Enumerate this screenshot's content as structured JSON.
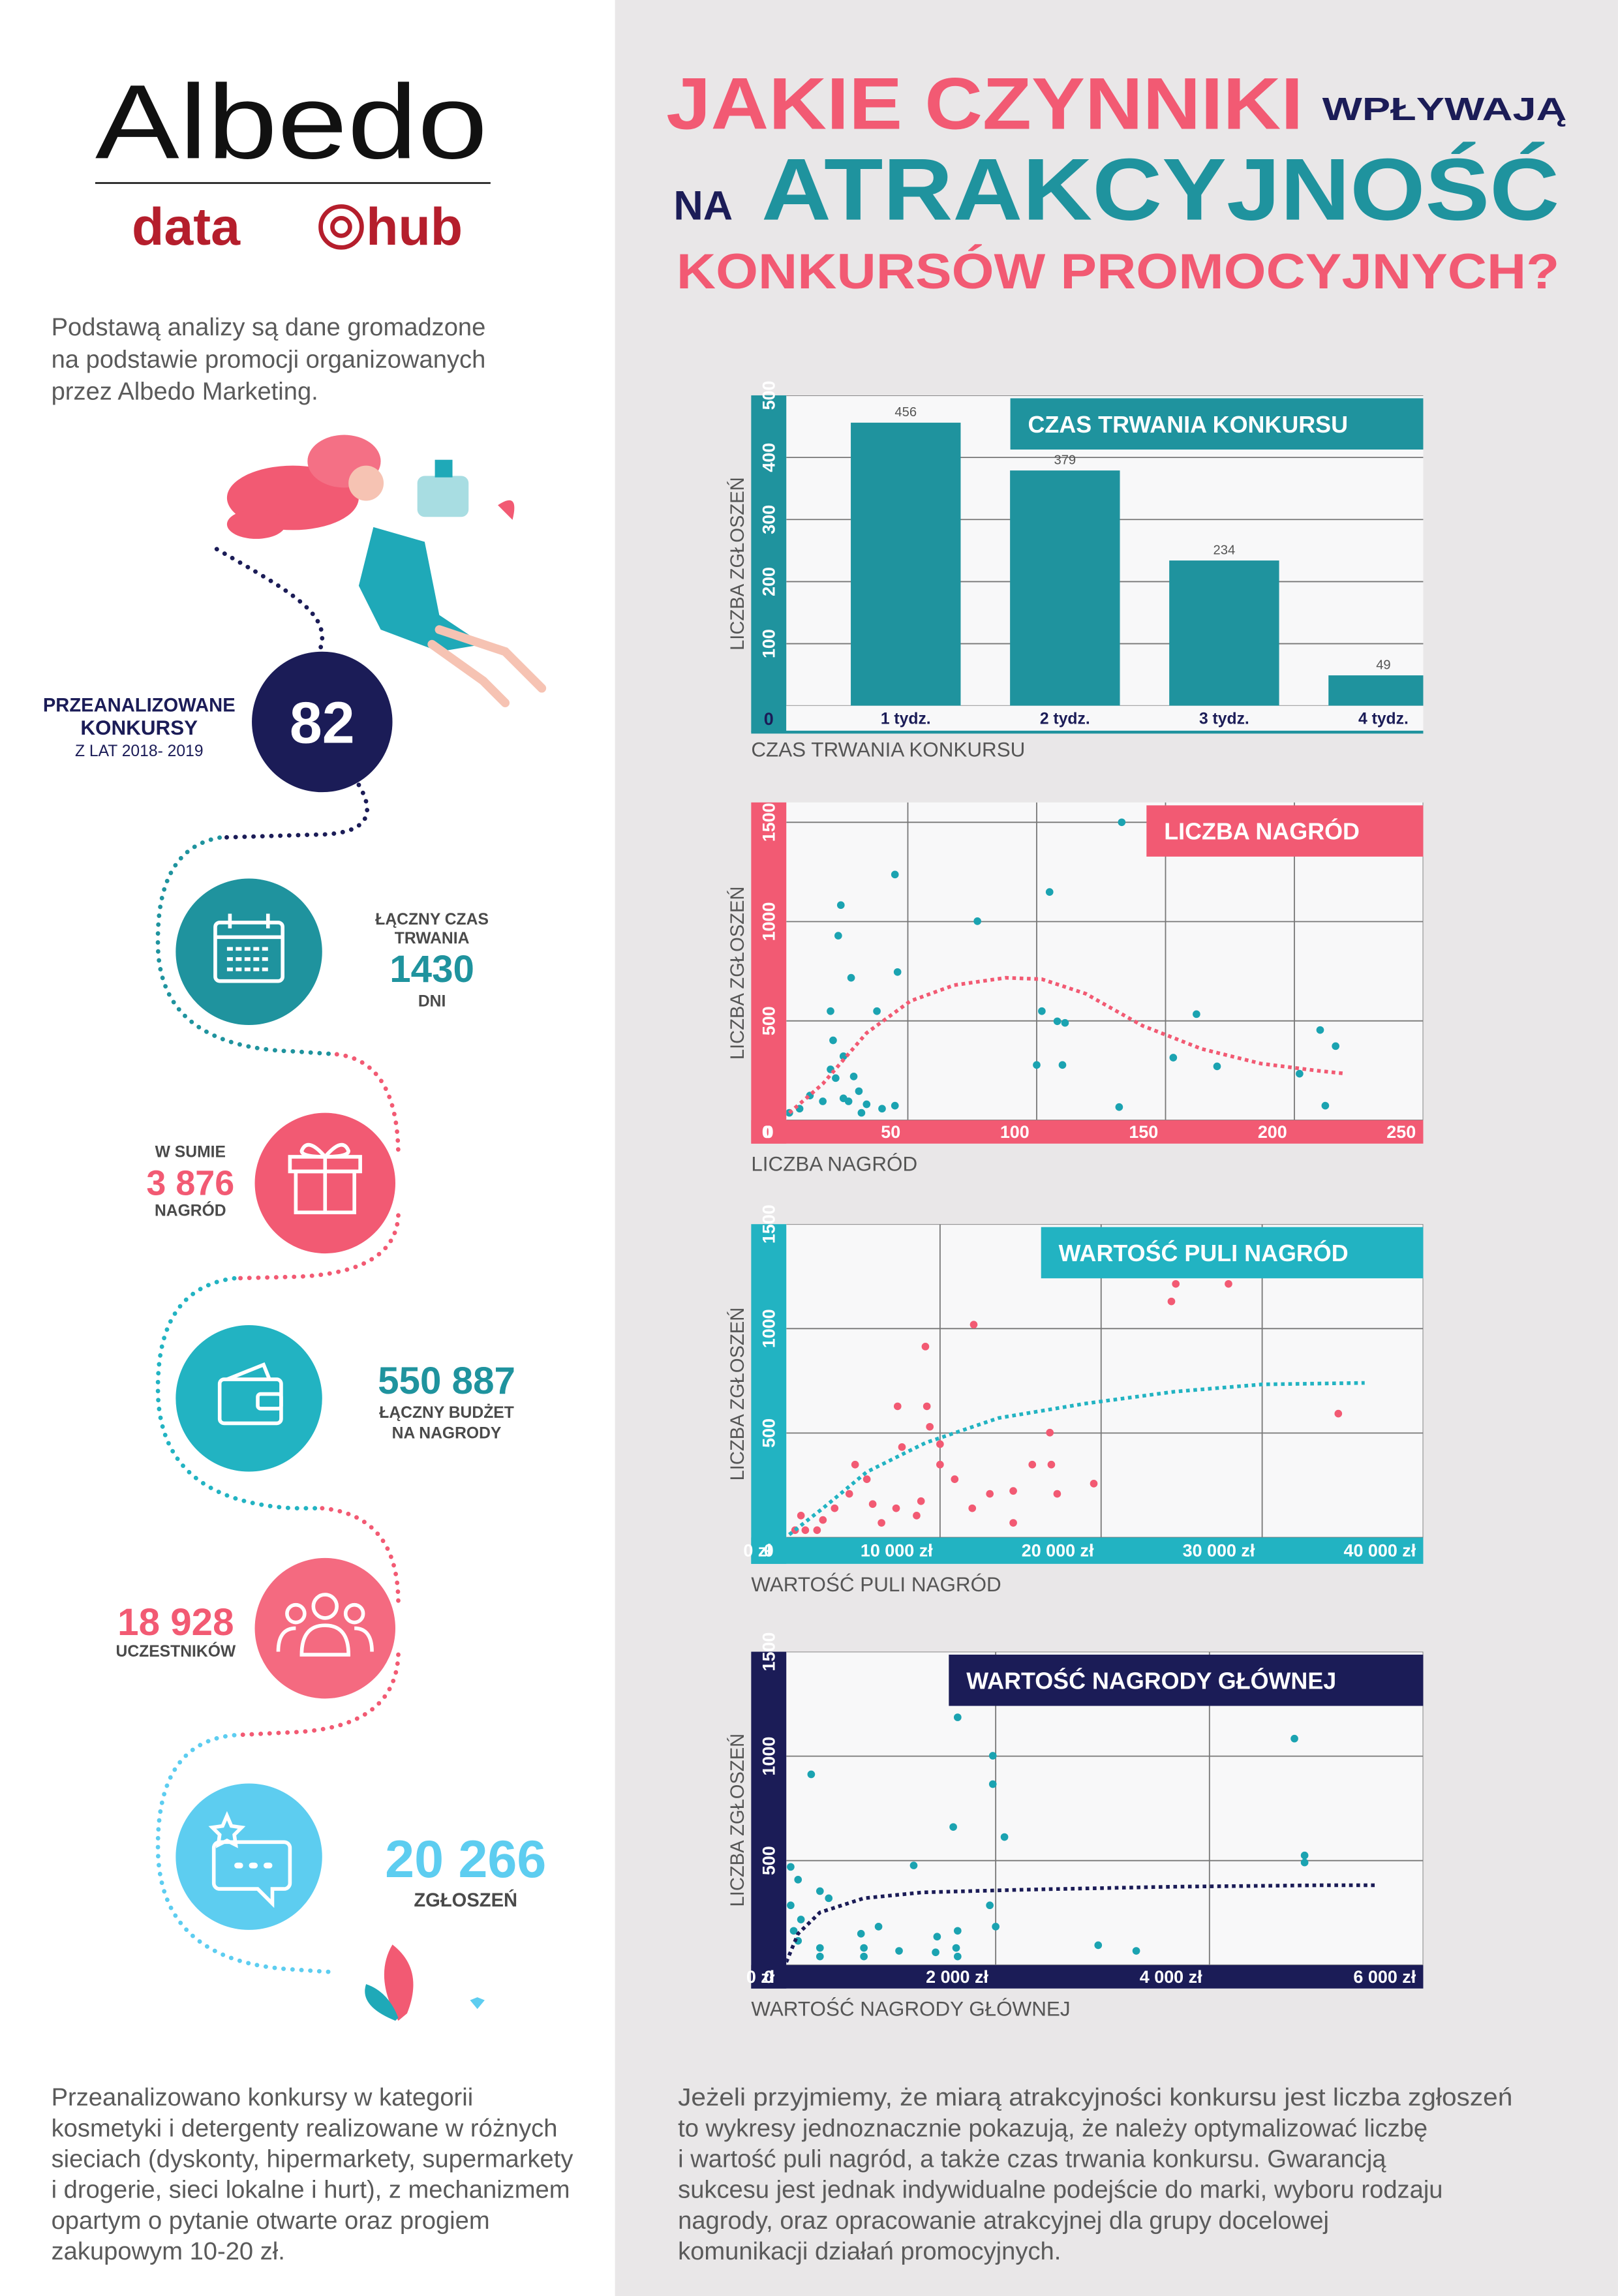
{
  "logo": {
    "brand": "Albedo",
    "sub_left": "data",
    "sub_right": "hub"
  },
  "intro": [
    "Podstawą analizy są dane gromadzone",
    "na podstawie promocji organizowanych",
    "przez Albedo Marketing."
  ],
  "stats": [
    {
      "label": [
        "PRZEANALIZOWANE",
        "KONKURSY"
      ],
      "value": "82",
      "note": "Z LAT 2018- 2019"
    },
    {
      "label": [
        "ŁĄCZNY CZAS",
        "TRWANIA"
      ],
      "value": "1430",
      "unit": "DNI"
    },
    {
      "label": [
        "W SUMIE"
      ],
      "value": "3 876",
      "unit": "NAGRÓD"
    },
    {
      "value": "550 887",
      "label": [
        "ŁĄCZNY BUDŻET",
        "NA NAGRODY"
      ]
    },
    {
      "value": "18 928",
      "label": [
        "UCZESTNIKÓW"
      ]
    },
    {
      "value": "20 266",
      "label": [
        "ZGŁOSZEŃ"
      ]
    }
  ],
  "title": {
    "line1": "JAKIE CZYNNIKI",
    "line1_small": "WPŁYWAJĄ",
    "line2_small": "NA",
    "line2": "ATRAKCYJNOŚĆ",
    "line3": "KONKURSÓW PROMOCYJNYCH?"
  },
  "chart_data": [
    {
      "type": "bar",
      "title": "CZAS TRWANIA KONKURSU",
      "x_label": "CZAS TRWANIA KONKURSU",
      "y_label": "LICZBA ZGŁOSZEŃ",
      "categories": [
        "1 tydz.",
        "2 tydz.",
        "3 tydz.",
        "4 tydz."
      ],
      "values": [
        456,
        379,
        234,
        49
      ],
      "color": "#1f939e",
      "axis_color": "#1f939e",
      "ylim": [
        0,
        500
      ],
      "yticks": [
        0,
        100,
        200,
        300,
        400,
        500
      ],
      "grid": true
    },
    {
      "type": "scatter",
      "title": "LICZBA NAGRÓD",
      "x_label": "LICZBA NAGRÓD",
      "y_label": "LICZBA ZGŁOSZEŃ",
      "x": [
        133,
        45,
        24,
        23,
        77,
        105,
        46,
        28,
        20,
        38,
        102,
        108,
        111,
        162,
        210,
        21,
        25,
        20,
        22,
        29,
        100,
        110,
        153,
        170,
        216,
        202,
        31,
        27,
        34,
        45,
        17,
        8,
        4,
        12,
        40,
        132,
        212,
        25,
        32
      ],
      "values": [
        1500,
        1237,
        1083,
        929,
        1002,
        1149,
        746,
        717,
        549,
        549,
        549,
        498,
        490,
        534,
        454,
        402,
        322,
        256,
        212,
        220,
        278,
        278,
        315,
        271,
        373,
        234,
        146,
        95,
        80,
        73,
        95,
        58,
        37,
        124,
        58,
        66,
        73,
        110,
        37
      ],
      "trend": {
        "x": [
          4,
          17,
          34,
          51,
          68,
          88,
          102,
          119,
          141,
          164,
          187,
          209,
          220
        ],
        "values": [
          37,
          183,
          439,
          600,
          680,
          717,
          710,
          637,
          476,
          359,
          285,
          249,
          234
        ]
      },
      "color": "#1ba3b1",
      "trend_color": "#f25a73",
      "axis_color": "#f25a73",
      "xlim": [
        0,
        250
      ],
      "xticks": [
        0,
        50,
        100,
        150,
        200,
        250
      ],
      "ylim": [
        0,
        1600
      ],
      "yticks": [
        0,
        500,
        1000,
        1500
      ],
      "grid": true
    },
    {
      "type": "scatter",
      "title": "WARTOŚĆ PULI NAGRÓD",
      "x_label": "WARTOŚĆ PULI  NAGRÓD",
      "y_label": "LICZBA ZGŁOSZEŃ",
      "x": [
        24364,
        24636,
        27909,
        9091,
        12091,
        34727,
        9182,
        9364,
        7364,
        7636,
        10000,
        16818,
        15727,
        16909,
        5455,
        5818,
        4364,
        3455,
        10909,
        13091,
        14545,
        19545,
        17273,
        8818,
        8545,
        6364,
        2727,
        1364,
        1636,
        1000,
        2364,
        7273,
        4727,
        10000,
        12000,
        14545
      ],
      "values": [
        1130,
        1214,
        1214,
        914,
        1019,
        593,
        628,
        530,
        628,
        433,
        447,
        502,
        349,
        349,
        279,
        160,
        209,
        140,
        279,
        209,
        223,
        258,
        209,
        174,
        105,
        70,
        84,
        105,
        35,
        35,
        35,
        140,
        349,
        349,
        140,
        70
      ],
      "trend": {
        "x": [
          636,
          2727,
          5455,
          9091,
          13636,
          19091,
          24545,
          30000,
          36364
        ],
        "values": [
          14,
          140,
          314,
          453,
          572,
          642,
          698,
          733,
          740
        ]
      },
      "color": "#f25a73",
      "trend_color": "#22b3c2",
      "axis_color": "#22b3c2",
      "xlim": [
        0,
        40000
      ],
      "xticks": [
        {
          "value": 0,
          "label": "0 zł"
        },
        {
          "value": 10000,
          "label": "10 000 zł"
        },
        {
          "value": 20000,
          "label": "20 000 zł"
        },
        {
          "value": 30000,
          "label": "30 000 zł"
        },
        {
          "value": 40000,
          "label": "40 000 zł"
        }
      ],
      "ylim": [
        0,
        1500
      ],
      "yticks": [
        0,
        500,
        1000,
        1500
      ],
      "grid": true
    },
    {
      "type": "scatter",
      "title": "WARTOŚĆ NAGRODY GŁÓWNEJ",
      "x_label": "WARTOŚĆ NAGRODY GŁÓWNEJ",
      "y_label": "LICZBA ZGŁOSZEŃ",
      "x": [
        1644,
        274,
        4795,
        1973,
        1973,
        1603,
        2082,
        4890,
        4890,
        82,
        151,
        1233,
        356,
        438,
        82,
        178,
        110,
        904,
        1945,
        2000,
        151,
        356,
        740,
        767,
        1644,
        1630,
        1452,
        1438,
        2959,
        3315,
        1096,
        356,
        767,
        1644
      ],
      "values": [
        1186,
        913,
        1084,
        1002,
        866,
        661,
        613,
        525,
        491,
        470,
        409,
        477,
        354,
        320,
        286,
        218,
        164,
        184,
        286,
        184,
        116,
        82,
        150,
        82,
        164,
        82,
        136,
        61,
        95,
        68,
        68,
        41,
        41,
        41
      ],
      "trend": {
        "x": [
          41,
          151,
          356,
          767,
          1315,
          2274,
          3644,
          5014,
          5562
        ],
        "values": [
          14,
          150,
          252,
          320,
          348,
          361,
          375,
          382,
          382
        ]
      },
      "color": "#1ba3b1",
      "trend_color": "#1b1c57",
      "axis_color": "#1b1c57",
      "xlim": [
        0,
        6000
      ],
      "xticks": [
        {
          "value": 0,
          "label": "0 zł"
        },
        {
          "value": 2000,
          "label": "2 000 zł"
        },
        {
          "value": 4000,
          "label": "4 000 zł"
        },
        {
          "value": 6000,
          "label": "6 000 zł"
        }
      ],
      "ylim": [
        0,
        1500
      ],
      "yticks": [
        0,
        500,
        1000,
        1500
      ],
      "grid": true
    }
  ],
  "footer_left": [
    "Przeanalizowano konkursy w kategorii",
    "kosmetyki i detergenty realizowane w różnych",
    "sieciach (dyskonty, hipermarkety, supermarkety",
    "i drogerie, sieci lokalne i hurt), z mechanizmem",
    "opartym  o pytanie otwarte oraz progiem",
    "zakupowym 10-20 zł."
  ],
  "footer_right": [
    "Jeżeli przyjmiemy, że miarą atrakcyjności konkursu jest liczba zgłoszeń",
    "to wykresy jednoznacznie pokazują, że należy optymalizować liczbę",
    "i wartość puli nagród, a także czas trwania konkursu. Gwarancją",
    "sukcesu jest jednak indywidualne podejście do marki, wyboru rodzaju",
    "nagrody, oraz opracowanie atrakcyjnej dla grupy docelowej",
    "komunikacji działań promocyjnych."
  ]
}
